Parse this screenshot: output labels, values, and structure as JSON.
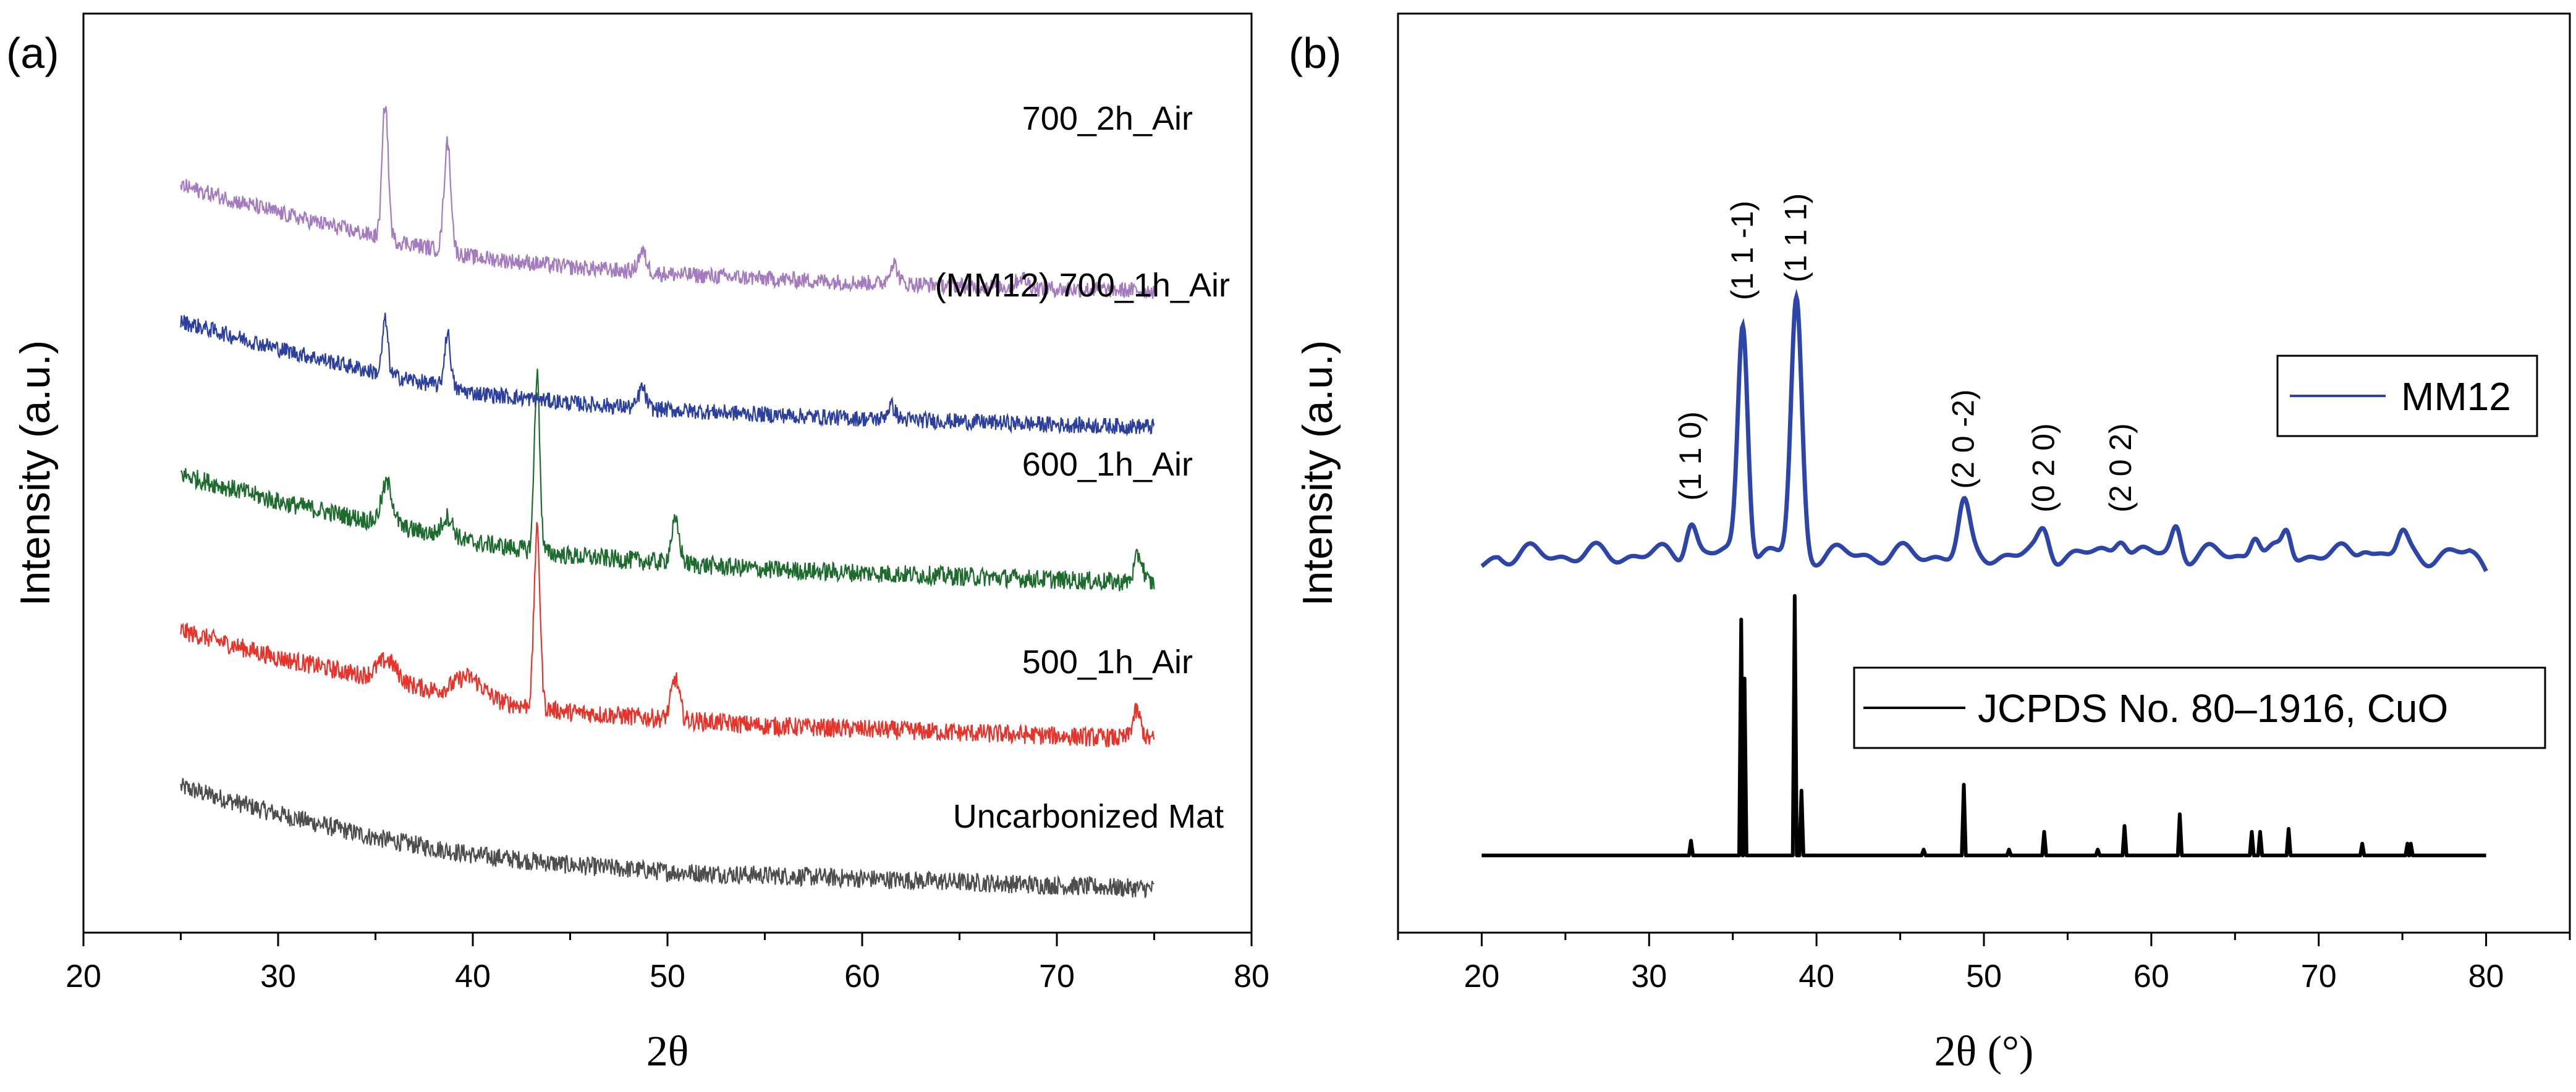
{
  "chart_data": [
    {
      "panel_label": "(a)",
      "type": "line",
      "xlabel": "2θ",
      "ylabel": "Intensity (a.u.)",
      "xlim": [
        20,
        80
      ],
      "xticks": [
        20,
        30,
        40,
        50,
        60,
        70,
        80
      ],
      "y_ticks_shown": false,
      "x_range_of_data": [
        25,
        75
      ],
      "series": [
        {
          "name": "Uncarbonized Mat",
          "color": "#4d4d4d",
          "offset": 0.0,
          "baseline": [
            [
              25,
              0.16
            ],
            [
              30,
              0.12
            ],
            [
              35,
              0.085
            ],
            [
              40,
              0.06
            ],
            [
              45,
              0.045
            ],
            [
              50,
              0.035
            ],
            [
              55,
              0.03
            ],
            [
              60,
              0.025
            ],
            [
              65,
              0.02
            ],
            [
              70,
              0.015
            ],
            [
              75,
              0.01
            ]
          ],
          "noise": 0.014,
          "peaks": []
        },
        {
          "name": "500_1h_Air",
          "color": "#e8332a",
          "offset": 0.22,
          "baseline": [
            [
              25,
              0.17
            ],
            [
              30,
              0.13
            ],
            [
              35,
              0.1
            ],
            [
              40,
              0.07
            ],
            [
              45,
              0.05
            ],
            [
              50,
              0.04
            ],
            [
              55,
              0.03
            ],
            [
              60,
              0.025
            ],
            [
              65,
              0.02
            ],
            [
              70,
              0.015
            ],
            [
              75,
              0.01
            ]
          ],
          "noise": 0.014,
          "peaks": [
            [
              35.6,
              0.03,
              0.7
            ],
            [
              39.8,
              0.03,
              1.0
            ],
            [
              43.3,
              0.26,
              0.22
            ],
            [
              50.4,
              0.06,
              0.3
            ],
            [
              74.1,
              0.04,
              0.3
            ]
          ]
        },
        {
          "name": "600_1h_Air",
          "color": "#1e6b2e",
          "offset": 0.45,
          "baseline": [
            [
              25,
              0.17
            ],
            [
              30,
              0.13
            ],
            [
              35,
              0.1
            ],
            [
              40,
              0.07
            ],
            [
              45,
              0.05
            ],
            [
              50,
              0.04
            ],
            [
              55,
              0.03
            ],
            [
              60,
              0.025
            ],
            [
              65,
              0.02
            ],
            [
              70,
              0.015
            ],
            [
              75,
              0.01
            ]
          ],
          "noise": 0.014,
          "peaks": [
            [
              35.6,
              0.06,
              0.4
            ],
            [
              38.7,
              0.03,
              0.4
            ],
            [
              43.3,
              0.26,
              0.2
            ],
            [
              50.4,
              0.06,
              0.3
            ],
            [
              74.2,
              0.04,
              0.3
            ]
          ]
        },
        {
          "name": "(MM12) 700_1h_Air",
          "color": "#2b3f9e",
          "offset": 0.68,
          "baseline": [
            [
              25,
              0.165
            ],
            [
              30,
              0.125
            ],
            [
              35,
              0.09
            ],
            [
              40,
              0.06
            ],
            [
              45,
              0.045
            ],
            [
              50,
              0.035
            ],
            [
              55,
              0.028
            ],
            [
              60,
              0.022
            ],
            [
              65,
              0.018
            ],
            [
              70,
              0.013
            ],
            [
              75,
              0.01
            ]
          ],
          "noise": 0.012,
          "peaks": [
            [
              35.5,
              0.08,
              0.2
            ],
            [
              38.7,
              0.08,
              0.22
            ],
            [
              48.7,
              0.03,
              0.25
            ],
            [
              61.5,
              0.02,
              0.3
            ]
          ]
        },
        {
          "name": "700_2h_Air",
          "color": "#a57bc0",
          "offset": 0.88,
          "baseline": [
            [
              25,
              0.165
            ],
            [
              30,
              0.125
            ],
            [
              35,
              0.09
            ],
            [
              40,
              0.06
            ],
            [
              45,
              0.045
            ],
            [
              50,
              0.035
            ],
            [
              55,
              0.028
            ],
            [
              60,
              0.022
            ],
            [
              65,
              0.018
            ],
            [
              70,
              0.013
            ],
            [
              75,
              0.01
            ]
          ],
          "noise": 0.012,
          "peaks": [
            [
              35.5,
              0.2,
              0.22
            ],
            [
              38.7,
              0.16,
              0.25
            ],
            [
              48.7,
              0.03,
              0.3
            ],
            [
              61.6,
              0.03,
              0.3
            ],
            [
              68.2,
              0.015,
              0.4
            ]
          ]
        }
      ]
    },
    {
      "panel_label": "(b)",
      "type": "line",
      "xlabel": "2θ (°)",
      "ylabel": "Intensity (a.u.)",
      "xlim": [
        15,
        85
      ],
      "xticks": [
        20,
        30,
        40,
        50,
        60,
        70,
        80
      ],
      "y_ticks_shown": false,
      "series": [
        {
          "name": "MM12",
          "color": "#2d45a8",
          "offset": 0.45,
          "baseline_level": 0.06,
          "peaks": [
            [
              32.5,
              0.06,
              0.45
            ],
            [
              35.6,
              0.4,
              0.42
            ],
            [
              38.8,
              0.43,
              0.45
            ],
            [
              48.8,
              0.08,
              0.45
            ],
            [
              53.6,
              0.04,
              0.45
            ],
            [
              58.2,
              0.04,
              0.5
            ],
            [
              61.5,
              0.05,
              0.4
            ],
            [
              66.2,
              0.04,
              0.4
            ],
            [
              68.1,
              0.04,
              0.35
            ],
            [
              72.7,
              0.02,
              0.5
            ],
            [
              75.0,
              0.03,
              0.4
            ]
          ],
          "peak_labels": [
            {
              "x": 32.5,
              "text": "(1 1 0)"
            },
            {
              "x": 35.6,
              "text": "(1 1 -1)"
            },
            {
              "x": 38.8,
              "text": "(1 1 1)"
            },
            {
              "x": 48.8,
              "text": "(2 0 -2)"
            },
            {
              "x": 53.6,
              "text": "(0 2 0)"
            },
            {
              "x": 58.2,
              "text": "(2 0 2)"
            }
          ]
        },
        {
          "name": "JCPDS No. 80–1916, CuO",
          "color": "#000000",
          "offset": 0.0,
          "peaks": [
            [
              32.5,
              0.025
            ],
            [
              35.5,
              0.4
            ],
            [
              35.7,
              0.3
            ],
            [
              38.7,
              0.44
            ],
            [
              39.1,
              0.11
            ],
            [
              46.4,
              0.01
            ],
            [
              48.8,
              0.12
            ],
            [
              51.5,
              0.01
            ],
            [
              53.6,
              0.04
            ],
            [
              56.8,
              0.01
            ],
            [
              58.4,
              0.05
            ],
            [
              61.7,
              0.07
            ],
            [
              66.0,
              0.04
            ],
            [
              66.5,
              0.04
            ],
            [
              68.2,
              0.045
            ],
            [
              72.6,
              0.02
            ],
            [
              75.3,
              0.02
            ],
            [
              75.5,
              0.02
            ]
          ]
        }
      ]
    }
  ]
}
